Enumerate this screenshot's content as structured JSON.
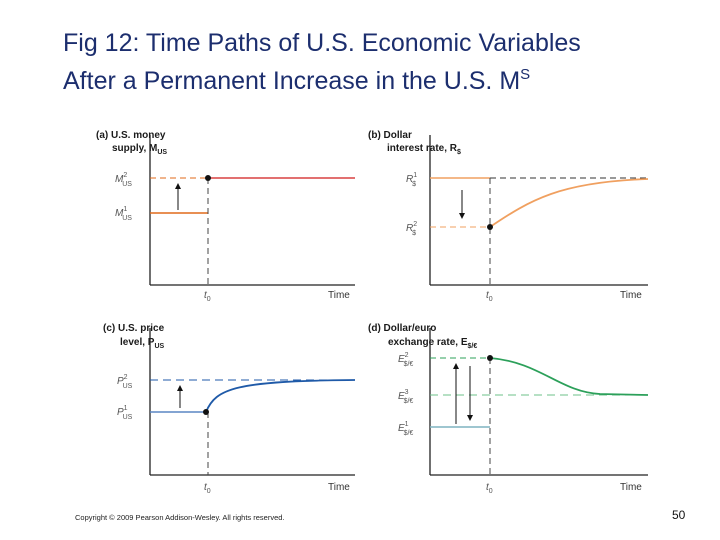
{
  "slide": {
    "title_line1": "Fig 12: Time Paths of U.S. Economic Variables",
    "title_line2": "After a Permanent Increase in the U.S. M",
    "title_superscript": "S",
    "copyright": "Copyright © 2009 Pearson Addison-Wesley. All rights reserved.",
    "page_number": "50"
  },
  "panels": [
    {
      "id": "a",
      "title_line1": "(a) U.S. money",
      "title_line2": "supply, M",
      "title_line2_sub": "US",
      "time_label": "Time",
      "t0_label": "t",
      "t0_sub": "0",
      "levels": [
        {
          "label": "M",
          "sup": "2",
          "sub": "US"
        },
        {
          "label": "M",
          "sup": "1",
          "sub": "US"
        }
      ],
      "color": "#e06a1a"
    },
    {
      "id": "b",
      "title_line1": "(b) Dollar",
      "title_line2": "interest rate, R",
      "title_line2_sub": "$",
      "time_label": "Time",
      "t0_label": "t",
      "t0_sub": "0",
      "levels": [
        {
          "label": "R",
          "sup": "1",
          "sub": "$"
        },
        {
          "label": "R",
          "sup": "2",
          "sub": "$"
        }
      ],
      "color": "#f0a060"
    },
    {
      "id": "c",
      "title_line1": "(c) U.S. price",
      "title_line2": "level, P",
      "title_line2_sub": "US",
      "time_label": "Time",
      "t0_label": "t",
      "t0_sub": "0",
      "levels": [
        {
          "label": "P",
          "sup": "2",
          "sub": "US"
        },
        {
          "label": "P",
          "sup": "1",
          "sub": "US"
        }
      ],
      "color": "#1f5aa8"
    },
    {
      "id": "d",
      "title_line1": "(d) Dollar/euro",
      "title_line2": "exchange rate, E",
      "title_line2_sub": "$/€",
      "time_label": "Time",
      "t0_label": "t",
      "t0_sub": "0",
      "levels": [
        {
          "label": "E",
          "sup": "2",
          "sub": "$/€"
        },
        {
          "label": "E",
          "sup": "3",
          "sub": "$/€"
        },
        {
          "label": "E",
          "sup": "1",
          "sub": "$/€"
        }
      ],
      "color": "#2ca05a"
    }
  ]
}
